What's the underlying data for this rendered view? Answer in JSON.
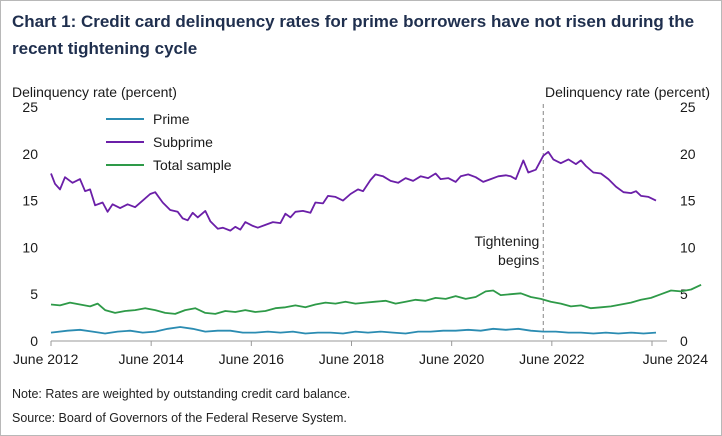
{
  "title": "Chart 1: Credit card delinquency rates for prime borrowers have not risen during the recent tightening cycle",
  "note": "Note: Rates are weighted by outstanding credit card balance.",
  "source": "Source: Board of Governors of the Federal Reserve System.",
  "colors": {
    "prime": "#2b8cb2",
    "subprime": "#6b1fa8",
    "total": "#2e9a48",
    "annotation_line": "#9a9a9a"
  },
  "chart_data": {
    "type": "line",
    "title": "Chart 1: Credit card delinquency rates for prime borrowers have not risen during the recent tightening cycle",
    "ylabel_left": "Delinquency rate (percent)",
    "ylabel_right": "Delinquency rate (percent)",
    "ylim": [
      0,
      25
    ],
    "y_ticks": [
      0,
      5,
      10,
      15,
      20,
      25
    ],
    "xlim": [
      2012.42,
      2024.5
    ],
    "x_ticks": [
      {
        "value": 2012.42,
        "label": "June 2012"
      },
      {
        "value": 2014.42,
        "label": "June 2014"
      },
      {
        "value": 2016.42,
        "label": "June 2016"
      },
      {
        "value": 2018.42,
        "label": "June 2018"
      },
      {
        "value": 2020.42,
        "label": "June 2020"
      },
      {
        "value": 2022.42,
        "label": "June 2022"
      },
      {
        "value": 2024.42,
        "label": "June 2024"
      }
    ],
    "annotation": {
      "x": 2022.25,
      "label_line1": "Tightening",
      "label_line2": "begins"
    },
    "legend": [
      "Prime",
      "Subprime",
      "Total sample"
    ],
    "series": [
      {
        "name": "Prime",
        "key": "prime",
        "points": [
          [
            2012.42,
            0.9
          ],
          [
            2012.75,
            1.1
          ],
          [
            2013.0,
            1.2
          ],
          [
            2013.25,
            1.0
          ],
          [
            2013.5,
            0.8
          ],
          [
            2013.75,
            1.0
          ],
          [
            2014.0,
            1.1
          ],
          [
            2014.25,
            0.9
          ],
          [
            2014.5,
            1.0
          ],
          [
            2014.75,
            1.3
          ],
          [
            2015.0,
            1.5
          ],
          [
            2015.25,
            1.3
          ],
          [
            2015.5,
            1.0
          ],
          [
            2015.75,
            1.1
          ],
          [
            2016.0,
            1.1
          ],
          [
            2016.25,
            0.9
          ],
          [
            2016.5,
            0.9
          ],
          [
            2016.75,
            1.0
          ],
          [
            2017.0,
            0.9
          ],
          [
            2017.25,
            1.0
          ],
          [
            2017.5,
            0.8
          ],
          [
            2017.75,
            0.9
          ],
          [
            2018.0,
            0.9
          ],
          [
            2018.25,
            0.8
          ],
          [
            2018.5,
            1.0
          ],
          [
            2018.75,
            0.9
          ],
          [
            2019.0,
            1.0
          ],
          [
            2019.25,
            0.9
          ],
          [
            2019.5,
            0.8
          ],
          [
            2019.75,
            1.0
          ],
          [
            2020.0,
            1.0
          ],
          [
            2020.25,
            1.1
          ],
          [
            2020.5,
            1.1
          ],
          [
            2020.75,
            1.2
          ],
          [
            2021.0,
            1.1
          ],
          [
            2021.25,
            1.3
          ],
          [
            2021.5,
            1.2
          ],
          [
            2021.75,
            1.3
          ],
          [
            2022.0,
            1.1
          ],
          [
            2022.25,
            1.0
          ],
          [
            2022.5,
            1.0
          ],
          [
            2022.75,
            0.9
          ],
          [
            2023.0,
            0.9
          ],
          [
            2023.25,
            0.8
          ],
          [
            2023.5,
            0.9
          ],
          [
            2023.75,
            0.8
          ],
          [
            2024.0,
            0.9
          ],
          [
            2024.25,
            0.8
          ],
          [
            2024.5,
            0.9
          ]
        ]
      },
      {
        "name": "Subprime",
        "key": "subprime",
        "points": [
          [
            2012.42,
            17.9
          ],
          [
            2012.5,
            16.8
          ],
          [
            2012.6,
            16.2
          ],
          [
            2012.7,
            17.5
          ],
          [
            2012.85,
            16.9
          ],
          [
            2013.0,
            17.3
          ],
          [
            2013.1,
            16.0
          ],
          [
            2013.2,
            16.2
          ],
          [
            2013.3,
            14.5
          ],
          [
            2013.45,
            14.8
          ],
          [
            2013.55,
            13.8
          ],
          [
            2013.65,
            14.6
          ],
          [
            2013.8,
            14.2
          ],
          [
            2013.95,
            14.6
          ],
          [
            2014.1,
            14.3
          ],
          [
            2014.25,
            15.0
          ],
          [
            2014.4,
            15.7
          ],
          [
            2014.5,
            15.9
          ],
          [
            2014.65,
            14.8
          ],
          [
            2014.8,
            14.0
          ],
          [
            2014.95,
            13.8
          ],
          [
            2015.05,
            13.1
          ],
          [
            2015.15,
            12.9
          ],
          [
            2015.25,
            13.7
          ],
          [
            2015.35,
            13.2
          ],
          [
            2015.5,
            13.9
          ],
          [
            2015.6,
            12.8
          ],
          [
            2015.75,
            12.0
          ],
          [
            2015.85,
            12.1
          ],
          [
            2016.0,
            11.8
          ],
          [
            2016.1,
            12.2
          ],
          [
            2016.2,
            11.9
          ],
          [
            2016.3,
            12.7
          ],
          [
            2016.45,
            12.3
          ],
          [
            2016.55,
            12.1
          ],
          [
            2016.7,
            12.4
          ],
          [
            2016.85,
            12.7
          ],
          [
            2017.0,
            12.6
          ],
          [
            2017.1,
            13.6
          ],
          [
            2017.2,
            13.2
          ],
          [
            2017.3,
            13.8
          ],
          [
            2017.45,
            13.9
          ],
          [
            2017.6,
            13.7
          ],
          [
            2017.7,
            14.8
          ],
          [
            2017.85,
            14.7
          ],
          [
            2017.95,
            15.5
          ],
          [
            2018.1,
            15.4
          ],
          [
            2018.25,
            15.0
          ],
          [
            2018.4,
            15.7
          ],
          [
            2018.55,
            16.2
          ],
          [
            2018.65,
            16.0
          ],
          [
            2018.8,
            17.2
          ],
          [
            2018.9,
            17.8
          ],
          [
            2019.05,
            17.6
          ],
          [
            2019.2,
            17.1
          ],
          [
            2019.35,
            16.9
          ],
          [
            2019.5,
            17.4
          ],
          [
            2019.65,
            17.1
          ],
          [
            2019.8,
            17.6
          ],
          [
            2019.95,
            17.4
          ],
          [
            2020.1,
            17.9
          ],
          [
            2020.2,
            17.3
          ],
          [
            2020.35,
            17.4
          ],
          [
            2020.5,
            17.0
          ],
          [
            2020.6,
            17.6
          ],
          [
            2020.75,
            17.8
          ],
          [
            2020.9,
            17.5
          ],
          [
            2021.05,
            17.0
          ],
          [
            2021.2,
            17.3
          ],
          [
            2021.35,
            17.6
          ],
          [
            2021.5,
            17.7
          ],
          [
            2021.6,
            17.6
          ],
          [
            2021.7,
            17.3
          ],
          [
            2021.85,
            19.3
          ],
          [
            2021.95,
            18.0
          ],
          [
            2022.1,
            18.3
          ],
          [
            2022.25,
            19.8
          ],
          [
            2022.35,
            20.2
          ],
          [
            2022.45,
            19.4
          ],
          [
            2022.6,
            19.0
          ],
          [
            2022.75,
            19.4
          ],
          [
            2022.9,
            18.9
          ],
          [
            2023.0,
            19.3
          ],
          [
            2023.1,
            18.7
          ],
          [
            2023.25,
            18.0
          ],
          [
            2023.4,
            17.9
          ],
          [
            2023.55,
            17.3
          ],
          [
            2023.7,
            16.5
          ],
          [
            2023.85,
            15.9
          ],
          [
            2024.0,
            15.8
          ],
          [
            2024.1,
            16.0
          ],
          [
            2024.2,
            15.5
          ],
          [
            2024.35,
            15.4
          ],
          [
            2024.5,
            15.0
          ]
        ]
      },
      {
        "name": "Total sample",
        "key": "total",
        "points": [
          [
            2012.42,
            3.9
          ],
          [
            2012.6,
            3.8
          ],
          [
            2012.8,
            4.1
          ],
          [
            2013.0,
            3.9
          ],
          [
            2013.2,
            3.7
          ],
          [
            2013.35,
            4.0
          ],
          [
            2013.5,
            3.3
          ],
          [
            2013.7,
            3.0
          ],
          [
            2013.9,
            3.2
          ],
          [
            2014.1,
            3.3
          ],
          [
            2014.3,
            3.5
          ],
          [
            2014.5,
            3.3
          ],
          [
            2014.7,
            3.0
          ],
          [
            2014.9,
            2.9
          ],
          [
            2015.1,
            3.3
          ],
          [
            2015.3,
            3.5
          ],
          [
            2015.5,
            3.0
          ],
          [
            2015.7,
            2.9
          ],
          [
            2015.9,
            3.2
          ],
          [
            2016.1,
            3.1
          ],
          [
            2016.3,
            3.3
          ],
          [
            2016.5,
            3.1
          ],
          [
            2016.7,
            3.2
          ],
          [
            2016.9,
            3.5
          ],
          [
            2017.1,
            3.6
          ],
          [
            2017.3,
            3.8
          ],
          [
            2017.5,
            3.6
          ],
          [
            2017.7,
            3.9
          ],
          [
            2017.9,
            4.1
          ],
          [
            2018.1,
            4.0
          ],
          [
            2018.3,
            4.2
          ],
          [
            2018.5,
            4.0
          ],
          [
            2018.7,
            4.1
          ],
          [
            2018.9,
            4.2
          ],
          [
            2019.1,
            4.3
          ],
          [
            2019.3,
            4.0
          ],
          [
            2019.5,
            4.2
          ],
          [
            2019.7,
            4.4
          ],
          [
            2019.9,
            4.3
          ],
          [
            2020.1,
            4.6
          ],
          [
            2020.3,
            4.5
          ],
          [
            2020.5,
            4.8
          ],
          [
            2020.7,
            4.5
          ],
          [
            2020.9,
            4.7
          ],
          [
            2021.1,
            5.3
          ],
          [
            2021.25,
            5.4
          ],
          [
            2021.4,
            4.9
          ],
          [
            2021.6,
            5.0
          ],
          [
            2021.8,
            5.1
          ],
          [
            2022.0,
            4.7
          ],
          [
            2022.2,
            4.5
          ],
          [
            2022.4,
            4.2
          ],
          [
            2022.6,
            4.0
          ],
          [
            2022.8,
            3.7
          ],
          [
            2023.0,
            3.8
          ],
          [
            2023.2,
            3.5
          ],
          [
            2023.4,
            3.6
          ],
          [
            2023.6,
            3.7
          ],
          [
            2023.8,
            3.9
          ],
          [
            2024.0,
            4.1
          ],
          [
            2024.2,
            4.4
          ],
          [
            2024.4,
            4.6
          ],
          [
            2024.6,
            5.0
          ],
          [
            2024.8,
            5.4
          ],
          [
            2025.0,
            5.3
          ],
          [
            2025.2,
            5.5
          ],
          [
            2025.4,
            6.0
          ]
        ]
      }
    ]
  }
}
